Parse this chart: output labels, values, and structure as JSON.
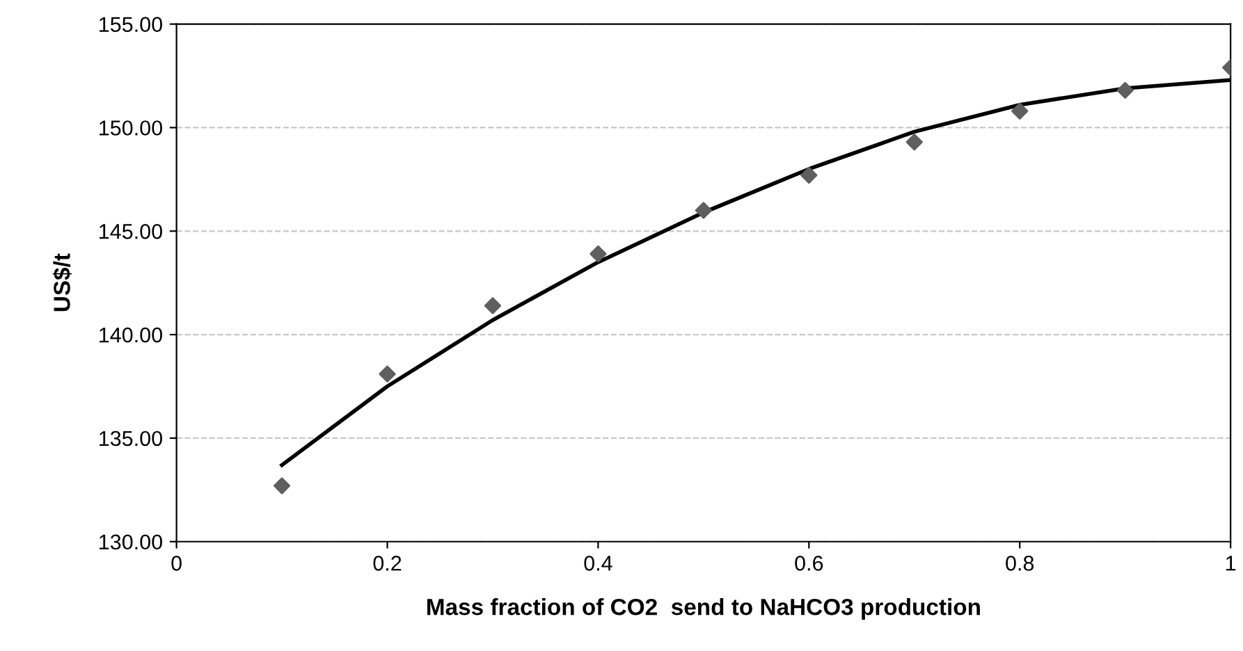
{
  "chart_data": {
    "type": "scatter",
    "xlabel": "Mass fraction of CO2  send to NaHCO3 production",
    "ylabel": "US$/t",
    "xlim": [
      0,
      1
    ],
    "xticks": [
      0,
      0.2,
      0.4,
      0.6,
      0.8,
      1
    ],
    "ylim": [
      130,
      155
    ],
    "yticks": [
      {
        "value": 130,
        "label": "130.00"
      },
      {
        "value": 135,
        "label": "135.00"
      },
      {
        "value": 140,
        "label": "140.00"
      },
      {
        "value": 145,
        "label": "145.00"
      },
      {
        "value": 150,
        "label": "150.00"
      },
      {
        "value": 155,
        "label": "155.00"
      }
    ],
    "grid": "y",
    "series": [
      {
        "color": "#5f5f5f",
        "marker": "diamond",
        "x": [
          0.1,
          0.2,
          0.3,
          0.4,
          0.5,
          0.6,
          0.7,
          0.8,
          0.9,
          1.0
        ],
        "values": [
          132.7,
          138.1,
          141.4,
          143.9,
          146.0,
          147.7,
          149.3,
          150.8,
          151.8,
          152.9
        ]
      },
      {
        "type": "line",
        "color": "#000000",
        "marker": "none",
        "line_style": "solid",
        "x": [
          0.1,
          0.2,
          0.3,
          0.4,
          0.5,
          0.6,
          0.7,
          0.8,
          0.9,
          1.0
        ],
        "values": [
          133.7,
          137.5,
          140.7,
          143.5,
          145.9,
          148.0,
          149.8,
          151.1,
          151.9,
          152.3
        ]
      }
    ]
  }
}
